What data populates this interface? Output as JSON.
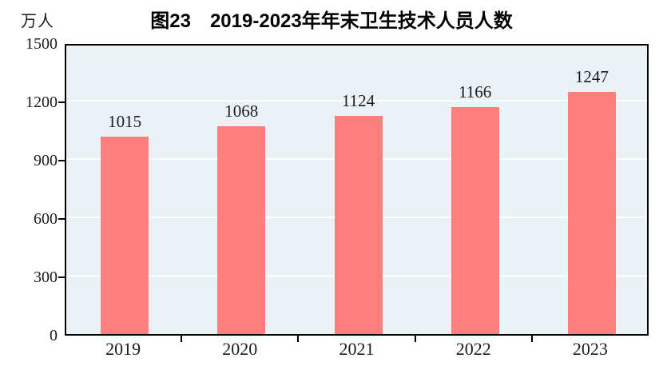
{
  "unit_label": "万人",
  "title": "图23　2019-2023年年末卫生技术人员人数",
  "chart_data": {
    "type": "bar",
    "categories": [
      "2019",
      "2020",
      "2021",
      "2022",
      "2023"
    ],
    "values": [
      1015,
      1068,
      1124,
      1166,
      1247
    ],
    "title": "图23　2019-2023年年末卫生技术人员人数",
    "xlabel": "",
    "ylabel": "万人",
    "ylim": [
      0,
      1500
    ],
    "yticks": [
      0,
      300,
      600,
      900,
      1200,
      1500
    ],
    "grid": "horizontal-white-at-ticks",
    "legend_position": "none",
    "bar_color": "#FC7F7D",
    "plot_background_color": "#EBF2F6",
    "gridline_color": "#FFFFFF",
    "frame_color": "#000000",
    "value_labels_shown": true
  }
}
